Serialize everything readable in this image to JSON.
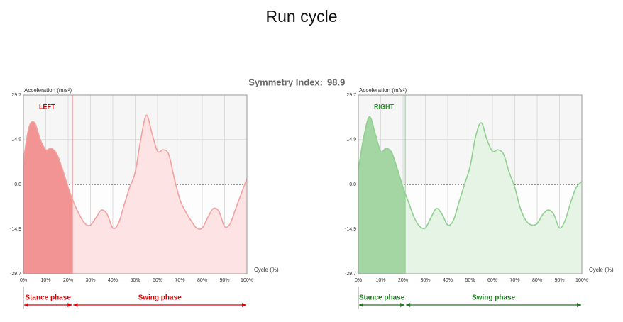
{
  "title": "Run cycle",
  "symmetry_label": "Symmetry Index:",
  "symmetry_value": 98.9,
  "chart_data": [
    {
      "type": "area",
      "label": "LEFT",
      "label_color": "#c00000",
      "ylabel": "Acceleration (m/s²)",
      "xlabel": "Cycle (%)",
      "line_color": "#f2a0a0",
      "stance_color": "#f29494",
      "swing_color": "#fde3e3",
      "phase_color": "#e00000",
      "x": [
        0,
        2.5,
        5,
        7.5,
        10,
        12.5,
        15,
        17.5,
        20,
        22.5,
        25,
        27.5,
        30,
        32.5,
        35,
        37.5,
        40,
        42.5,
        45,
        47.5,
        50,
        52.5,
        55,
        57.5,
        60,
        62.5,
        65,
        67.5,
        70,
        72.5,
        75,
        77.5,
        80,
        82.5,
        85,
        87.5,
        90,
        92.5,
        95,
        97.5,
        100
      ],
      "values": [
        8,
        19,
        20.5,
        15,
        11.5,
        12,
        10,
        5,
        -1,
        -6,
        -10,
        -13,
        -13.5,
        -11,
        -8.5,
        -10,
        -14.5,
        -13,
        -7,
        -1,
        4,
        15,
        23,
        17,
        11,
        11.5,
        10,
        2,
        -5,
        -9,
        -12,
        -14.5,
        -14.5,
        -11,
        -8,
        -9,
        -14,
        -13,
        -8,
        -3,
        2
      ],
      "phases": [
        {
          "name": "Stance phase",
          "xlim": [
            0,
            22
          ]
        },
        {
          "name": "Swing phase",
          "xlim": [
            22,
            100
          ]
        }
      ],
      "xlim": [
        0,
        100
      ],
      "xticks": [
        {
          "value": 0,
          "label": "0%"
        },
        {
          "value": 10,
          "label": "10%"
        },
        {
          "value": 20,
          "label": "20%"
        },
        {
          "value": 30,
          "label": "30%"
        },
        {
          "value": 40,
          "label": "40%"
        },
        {
          "value": 50,
          "label": "50%"
        },
        {
          "value": 60,
          "label": "60%"
        },
        {
          "value": 70,
          "label": "70%"
        },
        {
          "value": 80,
          "label": "80%"
        },
        {
          "value": 90,
          "label": "90%"
        },
        {
          "value": 100,
          "label": "100%"
        }
      ],
      "ylim": [
        -29.7,
        29.7
      ],
      "yticks": [
        -29.7,
        -14.9,
        {
          "value": 0,
          "label": "0.0"
        },
        14.9,
        29.7
      ],
      "grid": true
    },
    {
      "type": "area",
      "label": "RIGHT",
      "label_color": "#2e8b2e",
      "ylabel": "Acceleration (m/s²)",
      "xlabel": "Cycle (%)",
      "line_color": "#8fcf8f",
      "stance_color": "#a3d6a3",
      "swing_color": "#e6f4e6",
      "phase_color": "#1a7a1a",
      "x": [
        0,
        2.5,
        5,
        7.5,
        10,
        12.5,
        15,
        17.5,
        20,
        22.5,
        25,
        27.5,
        30,
        32.5,
        35,
        37.5,
        40,
        42.5,
        45,
        47.5,
        50,
        52.5,
        55,
        57.5,
        60,
        62.5,
        65,
        67.5,
        70,
        72.5,
        75,
        77.5,
        80,
        82.5,
        85,
        87.5,
        90,
        92.5,
        95,
        97.5,
        100
      ],
      "values": [
        5,
        16,
        22.5,
        17,
        11,
        12,
        10.5,
        5,
        -1,
        -6,
        -11,
        -14,
        -14.5,
        -11,
        -8,
        -10,
        -13.5,
        -12,
        -6,
        0,
        6,
        16,
        20.5,
        15,
        11,
        11.5,
        10,
        4,
        -1,
        -8,
        -12,
        -13.5,
        -13,
        -10,
        -8.5,
        -10,
        -14.5,
        -12,
        -6,
        -1,
        1
      ],
      "phases": [
        {
          "name": "Stance phase",
          "xlim": [
            0,
            21
          ]
        },
        {
          "name": "Swing phase",
          "xlim": [
            21,
            100
          ]
        }
      ],
      "xlim": [
        0,
        100
      ],
      "xticks": [
        {
          "value": 0,
          "label": "0%"
        },
        {
          "value": 10,
          "label": "10%"
        },
        {
          "value": 20,
          "label": "20%"
        },
        {
          "value": 30,
          "label": "30%"
        },
        {
          "value": 40,
          "label": "40%"
        },
        {
          "value": 50,
          "label": "50%"
        },
        {
          "value": 60,
          "label": "60%"
        },
        {
          "value": 70,
          "label": "70%"
        },
        {
          "value": 80,
          "label": "80%"
        },
        {
          "value": 90,
          "label": "90%"
        },
        {
          "value": 100,
          "label": "100%"
        }
      ],
      "ylim": [
        -29.7,
        29.7
      ],
      "yticks": [
        -29.7,
        -14.9,
        {
          "value": 0,
          "label": "0.0"
        },
        14.9,
        29.7
      ],
      "grid": true
    }
  ]
}
